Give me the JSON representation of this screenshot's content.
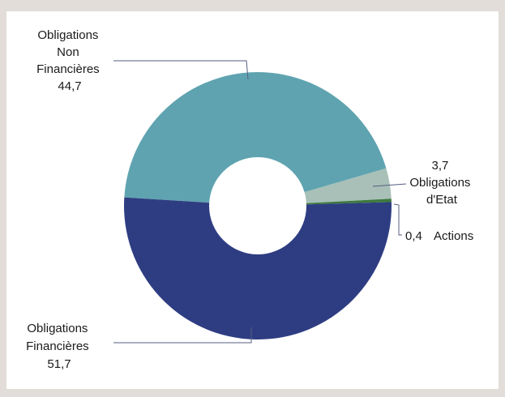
{
  "chart_data": {
    "type": "pie",
    "variant": "donut",
    "title": "",
    "slices": [
      {
        "label_lines": [
          "Obligations",
          "Non",
          "Financières"
        ],
        "value_text": "44,7",
        "value": 44.7,
        "color": "#5fa3b0"
      },
      {
        "label_lines": [
          "Obligations",
          "d'Etat"
        ],
        "value_text": "3,7",
        "value": 3.7,
        "color": "#a8c0b8"
      },
      {
        "label_lines": [
          "Actions"
        ],
        "value_text": "0,4",
        "value": 0.4,
        "color": "#3d7a3d"
      },
      {
        "label_lines": [
          "Obligations",
          "Financières"
        ],
        "value_text": "51,7",
        "value": 51.7,
        "color": "#2e3d82"
      }
    ],
    "legend": "none"
  }
}
